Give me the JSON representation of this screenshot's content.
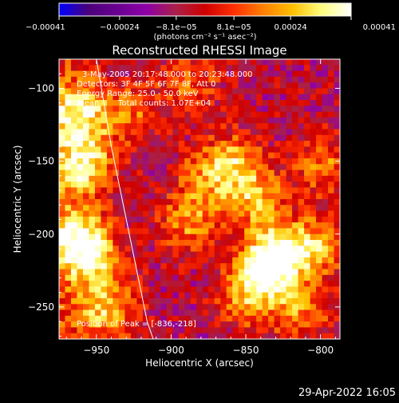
{
  "chart_data": {
    "type": "heatmap",
    "title": "Reconstructed RHESSI Image",
    "xlabel": "Heliocentric X (arcsec)",
    "ylabel": "Heliocentric Y (arcsec)",
    "xlim": [
      -975,
      -787
    ],
    "ylim": [
      -272,
      -80
    ],
    "xticks": [
      -950,
      -900,
      -850,
      -800
    ],
    "yticks": [
      -100,
      -150,
      -200,
      -250
    ],
    "xtick_labels": [
      "−950",
      "−900",
      "−850",
      "−800"
    ],
    "ytick_labels": [
      "−100",
      "−150",
      "−200",
      "−250"
    ],
    "colorbar": {
      "min": -0.00041,
      "max": 0.00041,
      "tick_values": [
        -0.00041,
        -0.00024,
        -8.1e-05,
        8.1e-05,
        0.00024,
        0.00041
      ],
      "tick_labels": [
        "−0.00041",
        "−0.00024",
        "−8.1e−05",
        "8.1e−05",
        "0.00024",
        "0.00041"
      ],
      "unit_label": "(photons cm⁻² s⁻¹ asec⁻²)",
      "colors": [
        "#0000ff",
        "#4a007a",
        "#6a0090",
        "#8e00a8",
        "#aa2048",
        "#d00000",
        "#ff3000",
        "#ff8000",
        "#ffc000",
        "#ffff80",
        "#ffffff"
      ]
    },
    "annotations": {
      "time_range": "3-May-2005 20:17:48.000 to 20:23:48.000",
      "detectors": "Detectors: 3F 4F 5F 6F 7F 8F, Att 0",
      "energy_range": "Energy Range: 25.0 - 50.0 keV",
      "method": "Clean",
      "total_counts": "Total counts: 1.07E+04",
      "peak_position": "Position of Peak = [-836,-218]"
    },
    "limb_curve": {
      "x": [
        -950,
        -945,
        -940,
        -934,
        -928,
        -922,
        -916,
        -912
      ],
      "y": [
        -80,
        -110,
        -140,
        -170,
        -200,
        -230,
        -260,
        -272
      ]
    },
    "peak": {
      "x": -836,
      "y": -218
    },
    "hotspots": [
      {
        "x": -965,
        "y": -115,
        "value": 0.00035
      },
      {
        "x": -960,
        "y": -150,
        "value": 0.00036
      },
      {
        "x": -965,
        "y": -200,
        "value": 0.00032
      },
      {
        "x": -955,
        "y": -215,
        "value": 0.0003
      },
      {
        "x": -945,
        "y": -250,
        "value": 0.0003
      },
      {
        "x": -930,
        "y": -115,
        "value": 0.0002
      },
      {
        "x": -890,
        "y": -95,
        "value": 0.00018
      },
      {
        "x": -890,
        "y": -190,
        "value": 0.00025
      },
      {
        "x": -880,
        "y": -160,
        "value": 0.00018
      },
      {
        "x": -860,
        "y": -150,
        "value": 0.0003
      },
      {
        "x": -845,
        "y": -175,
        "value": 0.00028
      },
      {
        "x": -836,
        "y": -218,
        "value": 0.00041
      },
      {
        "x": -850,
        "y": -240,
        "value": 0.0003
      },
      {
        "x": -825,
        "y": -210,
        "value": 0.00027
      },
      {
        "x": -800,
        "y": -205,
        "value": 0.00024
      },
      {
        "x": -800,
        "y": -150,
        "value": 0.00022
      },
      {
        "x": -815,
        "y": -250,
        "value": 0.00023
      }
    ]
  },
  "footer": {
    "timestamp": "29-Apr-2022 16:05"
  }
}
